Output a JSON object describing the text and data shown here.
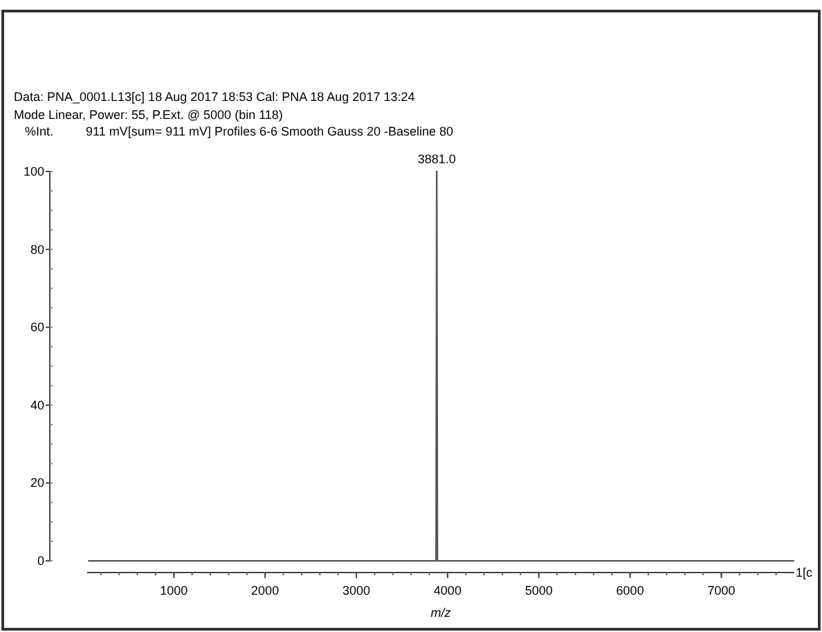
{
  "chart_data": {
    "type": "line",
    "ylabel": "%Int.",
    "xlabel": "m/z",
    "annotations": [
      "Data: PNA_0001.L13[c] 18 Aug 2017 18:53 Cal: PNA 18 Aug 2017 13:24",
      "Mode Linear, Power: 55, P.Ext. @ 5000 (bin 118)",
      "911 mV[sum= 911 mV]  Profiles 6-6 Smooth Gauss 20 -Baseline 80",
      {
        "text": "3881.0",
        "x": 3881,
        "y": 100
      },
      "1[c"
    ],
    "x": [
      60,
      3860,
      3874,
      3881,
      3888,
      3902,
      7800
    ],
    "series": [
      {
        "color": "#555555",
        "values": [
          0,
          0,
          0,
          100,
          0,
          0,
          0
        ]
      }
    ],
    "xlim": [
      50,
      7800
    ],
    "ylim": [
      -3,
      100
    ],
    "xticks": [
      1000,
      2000,
      3000,
      4000,
      5000,
      6000,
      7000
    ],
    "yticks": [
      0,
      20,
      40,
      60,
      80,
      100
    ],
    "grid": false,
    "marker": "none",
    "line_style": "solid"
  }
}
